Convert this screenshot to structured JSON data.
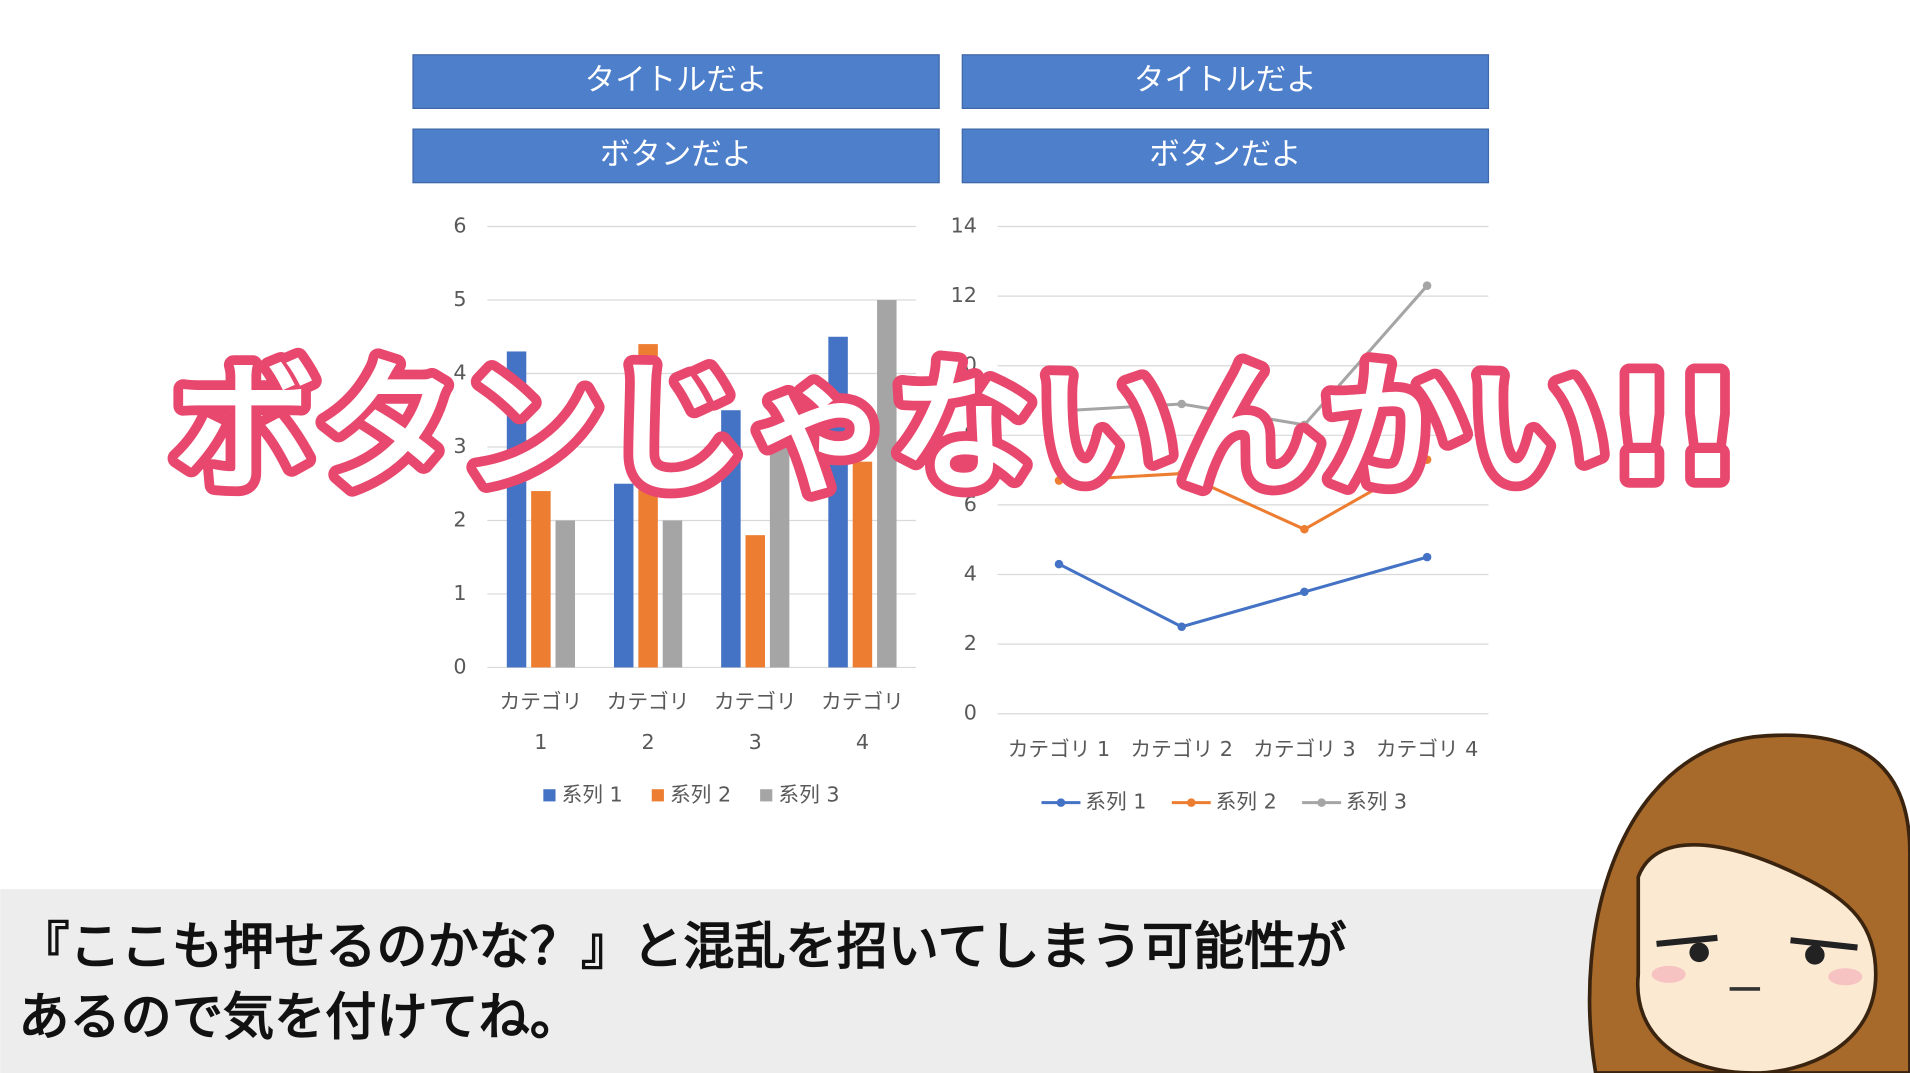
{
  "panels": [
    {
      "title_button": "タイトルだよ",
      "button": "ボタンだよ"
    },
    {
      "title_button": "タイトルだよ",
      "button": "ボタンだよ"
    }
  ],
  "chart_data": [
    {
      "type": "bar",
      "categories": [
        "カテゴリ 1",
        "カテゴリ 2",
        "カテゴリ 3",
        "カテゴリ 4"
      ],
      "series": [
        {
          "name": "系列 1",
          "color": "#4472c4",
          "values": [
            4.3,
            2.5,
            3.5,
            4.5
          ]
        },
        {
          "name": "系列 2",
          "color": "#ed7d31",
          "values": [
            2.4,
            4.4,
            1.8,
            2.8
          ]
        },
        {
          "name": "系列 3",
          "color": "#a5a5a5",
          "values": [
            2,
            2,
            3,
            5
          ]
        }
      ],
      "ylim": [
        0,
        6
      ],
      "yticks": [
        0,
        1,
        2,
        3,
        4,
        5,
        6
      ],
      "grid": true,
      "legend": "bottom"
    },
    {
      "type": "line",
      "stacked": true,
      "categories": [
        "カテゴリ 1",
        "カテゴリ 2",
        "カテゴリ 3",
        "カテゴリ 4"
      ],
      "series": [
        {
          "name": "系列 1",
          "color": "#4472c4",
          "values": [
            4.3,
            2.5,
            3.5,
            4.5
          ]
        },
        {
          "name": "系列 2",
          "color": "#ed7d31",
          "values": [
            2.4,
            4.4,
            1.8,
            2.8
          ]
        },
        {
          "name": "系列 3",
          "color": "#a5a5a5",
          "values": [
            2,
            2,
            3,
            5
          ]
        }
      ],
      "ylim": [
        0,
        14
      ],
      "yticks": [
        0,
        2,
        4,
        6,
        8,
        10,
        12,
        14
      ],
      "grid": true,
      "legend": "bottom"
    }
  ],
  "overlay_text": "ボタンじゃないんかい!!",
  "caption": [
    "『ここも押せるのかな？』と混乱を招いてしまう可能性が",
    "あるので気を付けてね。"
  ]
}
